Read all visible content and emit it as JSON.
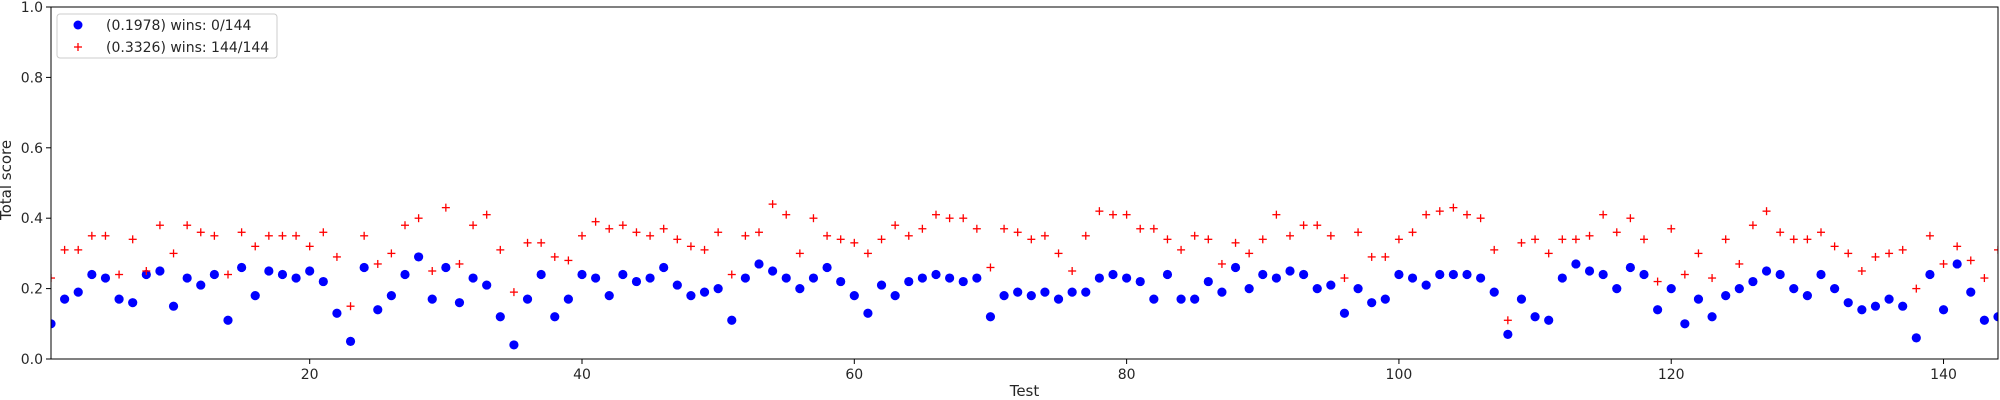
{
  "chart_data": {
    "type": "scatter",
    "title": "",
    "xlabel": "Test",
    "ylabel": "Total score",
    "xlim": [
      1,
      144
    ],
    "ylim": [
      0.0,
      1.0
    ],
    "xticks": [
      20,
      40,
      60,
      80,
      100,
      120,
      140
    ],
    "yticks": [
      0.0,
      0.2,
      0.4,
      0.6,
      0.8,
      1.0
    ],
    "xtick_labels": [
      "20",
      "40",
      "60",
      "80",
      "100",
      "120",
      "140"
    ],
    "ytick_labels": [
      "0.0",
      "0.2",
      "0.4",
      "0.6",
      "0.8",
      "1.0"
    ],
    "grid": false,
    "legend_position": "top-left",
    "series": [
      {
        "name": "(0.1978) wins: 0/144",
        "marker": "circle",
        "color": "#0000ff",
        "x": [
          1,
          2,
          3,
          4,
          5,
          6,
          7,
          8,
          9,
          10,
          11,
          12,
          13,
          14,
          15,
          16,
          17,
          18,
          19,
          20,
          21,
          22,
          23,
          24,
          25,
          26,
          27,
          28,
          29,
          30,
          31,
          32,
          33,
          34,
          35,
          36,
          37,
          38,
          39,
          40,
          41,
          42,
          43,
          44,
          45,
          46,
          47,
          48,
          49,
          50,
          51,
          52,
          53,
          54,
          55,
          56,
          57,
          58,
          59,
          60,
          61,
          62,
          63,
          64,
          65,
          66,
          67,
          68,
          69,
          70,
          71,
          72,
          73,
          74,
          75,
          76,
          77,
          78,
          79,
          80,
          81,
          82,
          83,
          84,
          85,
          86,
          87,
          88,
          89,
          90,
          91,
          92,
          93,
          94,
          95,
          96,
          97,
          98,
          99,
          100,
          101,
          102,
          103,
          104,
          105,
          106,
          107,
          108,
          109,
          110,
          111,
          112,
          113,
          114,
          115,
          116,
          117,
          118,
          119,
          120,
          121,
          122,
          123,
          124,
          125,
          126,
          127,
          128,
          129,
          130,
          131,
          132,
          133,
          134,
          135,
          136,
          137,
          138,
          139,
          140,
          141,
          142,
          143,
          144
        ],
        "y": [
          0.1,
          0.17,
          0.19,
          0.24,
          0.23,
          0.17,
          0.16,
          0.24,
          0.25,
          0.15,
          0.23,
          0.21,
          0.24,
          0.11,
          0.26,
          0.18,
          0.25,
          0.24,
          0.23,
          0.25,
          0.22,
          0.13,
          0.05,
          0.26,
          0.14,
          0.18,
          0.24,
          0.29,
          0.17,
          0.26,
          0.16,
          0.23,
          0.21,
          0.12,
          0.04,
          0.17,
          0.24,
          0.12,
          0.17,
          0.24,
          0.23,
          0.18,
          0.24,
          0.22,
          0.23,
          0.26,
          0.21,
          0.18,
          0.19,
          0.2,
          0.11,
          0.23,
          0.27,
          0.25,
          0.23,
          0.2,
          0.23,
          0.26,
          0.22,
          0.18,
          0.13,
          0.21,
          0.18,
          0.22,
          0.23,
          0.24,
          0.23,
          0.22,
          0.23,
          0.12,
          0.18,
          0.19,
          0.18,
          0.19,
          0.17,
          0.19,
          0.19,
          0.23,
          0.24,
          0.23,
          0.22,
          0.17,
          0.24,
          0.17,
          0.17,
          0.22,
          0.19,
          0.26,
          0.2,
          0.24,
          0.23,
          0.25,
          0.24,
          0.2,
          0.21,
          0.13,
          0.2,
          0.16,
          0.17,
          0.24,
          0.23,
          0.21,
          0.24,
          0.24,
          0.24,
          0.23,
          0.19,
          0.07,
          0.17,
          0.12,
          0.11,
          0.23,
          0.27,
          0.25,
          0.24,
          0.2,
          0.26,
          0.24,
          0.14,
          0.2,
          0.1,
          0.17,
          0.12,
          0.18,
          0.2,
          0.22,
          0.25,
          0.24,
          0.2,
          0.18,
          0.24,
          0.2,
          0.16,
          0.14,
          0.15,
          0.17,
          0.15,
          0.06,
          0.24,
          0.14,
          0.27,
          0.19,
          0.11,
          0.12
        ]
      },
      {
        "name": "(0.3326) wins: 144/144",
        "marker": "plus",
        "color": "#ff0000",
        "x": [
          1,
          2,
          3,
          4,
          5,
          6,
          7,
          8,
          9,
          10,
          11,
          12,
          13,
          14,
          15,
          16,
          17,
          18,
          19,
          20,
          21,
          22,
          23,
          24,
          25,
          26,
          27,
          28,
          29,
          30,
          31,
          32,
          33,
          34,
          35,
          36,
          37,
          38,
          39,
          40,
          41,
          42,
          43,
          44,
          45,
          46,
          47,
          48,
          49,
          50,
          51,
          52,
          53,
          54,
          55,
          56,
          57,
          58,
          59,
          60,
          61,
          62,
          63,
          64,
          65,
          66,
          67,
          68,
          69,
          70,
          71,
          72,
          73,
          74,
          75,
          76,
          77,
          78,
          79,
          80,
          81,
          82,
          83,
          84,
          85,
          86,
          87,
          88,
          89,
          90,
          91,
          92,
          93,
          94,
          95,
          96,
          97,
          98,
          99,
          100,
          101,
          102,
          103,
          104,
          105,
          106,
          107,
          108,
          109,
          110,
          111,
          112,
          113,
          114,
          115,
          116,
          117,
          118,
          119,
          120,
          121,
          122,
          123,
          124,
          125,
          126,
          127,
          128,
          129,
          130,
          131,
          132,
          133,
          134,
          135,
          136,
          137,
          138,
          139,
          140,
          141,
          142,
          143,
          144
        ],
        "y": [
          0.23,
          0.31,
          0.31,
          0.35,
          0.35,
          0.24,
          0.34,
          0.25,
          0.38,
          0.3,
          0.38,
          0.36,
          0.35,
          0.24,
          0.36,
          0.32,
          0.35,
          0.35,
          0.35,
          0.32,
          0.36,
          0.29,
          0.15,
          0.35,
          0.27,
          0.3,
          0.38,
          0.4,
          0.25,
          0.43,
          0.27,
          0.38,
          0.41,
          0.31,
          0.19,
          0.33,
          0.33,
          0.29,
          0.28,
          0.35,
          0.39,
          0.37,
          0.38,
          0.36,
          0.35,
          0.37,
          0.34,
          0.32,
          0.31,
          0.36,
          0.24,
          0.35,
          0.36,
          0.44,
          0.41,
          0.3,
          0.4,
          0.35,
          0.34,
          0.33,
          0.3,
          0.34,
          0.38,
          0.35,
          0.37,
          0.41,
          0.4,
          0.4,
          0.37,
          0.26,
          0.37,
          0.36,
          0.34,
          0.35,
          0.3,
          0.25,
          0.35,
          0.42,
          0.41,
          0.41,
          0.37,
          0.37,
          0.34,
          0.31,
          0.35,
          0.34,
          0.27,
          0.33,
          0.3,
          0.34,
          0.41,
          0.35,
          0.38,
          0.38,
          0.35,
          0.23,
          0.36,
          0.29,
          0.29,
          0.34,
          0.36,
          0.41,
          0.42,
          0.43,
          0.41,
          0.4,
          0.31,
          0.11,
          0.33,
          0.34,
          0.3,
          0.34,
          0.34,
          0.35,
          0.41,
          0.36,
          0.4,
          0.34,
          0.22,
          0.37,
          0.24,
          0.3,
          0.23,
          0.34,
          0.27,
          0.38,
          0.42,
          0.36,
          0.34,
          0.34,
          0.36,
          0.32,
          0.3,
          0.25,
          0.29,
          0.3,
          0.31,
          0.2,
          0.35,
          0.27,
          0.32,
          0.28,
          0.23,
          0.31
        ]
      }
    ]
  }
}
